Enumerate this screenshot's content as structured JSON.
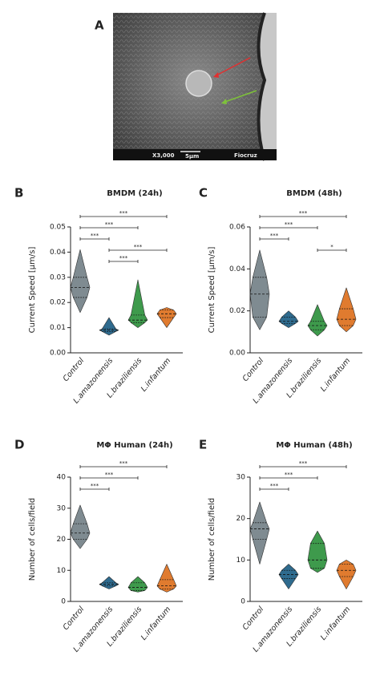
{
  "panel_a": {
    "label": "A",
    "scale": "X3,000",
    "bar": "5μm",
    "credit": "Fiocruz"
  },
  "chart_data": [
    {
      "type": "violin",
      "panel": "B",
      "title": "BMDM (24h)",
      "y_label": "Current Speed [μm/s]",
      "categories": [
        "Control",
        "L.amazonensis",
        "L.braziliensis",
        "L.infantum"
      ],
      "colors": [
        "#7f8b91",
        "#2f6b8e",
        "#3e9a4c",
        "#e07b2f"
      ],
      "min": [
        0.016,
        0.007,
        0.01,
        0.01
      ],
      "q1": [
        0.022,
        0.0085,
        0.012,
        0.014
      ],
      "median": [
        0.026,
        0.009,
        0.013,
        0.0155
      ],
      "q3": [
        0.03,
        0.0095,
        0.015,
        0.017
      ],
      "max": [
        0.041,
        0.014,
        0.029,
        0.018
      ],
      "ylim": [
        0,
        0.05
      ],
      "yticks": [
        {
          "value": 0,
          "label": "0.00"
        },
        {
          "value": 0.01,
          "label": "0.01"
        },
        {
          "value": 0.02,
          "label": "0.02"
        },
        {
          "value": 0.03,
          "label": "0.03"
        },
        {
          "value": 0.04,
          "label": "0.04"
        },
        {
          "value": 0.05,
          "label": "0.05"
        }
      ],
      "comparisons": [
        {
          "between": [
            "Control",
            "L.infantum"
          ],
          "label": "***"
        },
        {
          "between": [
            "Control",
            "L.braziliensis"
          ],
          "label": "***"
        },
        {
          "between": [
            "Control",
            "L.amazonensis"
          ],
          "label": "***"
        },
        {
          "between": [
            "L.amazonensis",
            "L.infantum"
          ],
          "label": "***"
        },
        {
          "between": [
            "L.amazonensis",
            "L.braziliensis"
          ],
          "label": "***"
        }
      ]
    },
    {
      "type": "violin",
      "panel": "C",
      "title": "BMDM  (48h)",
      "y_label": "Current Speed [μm/s]",
      "categories": [
        "Control",
        "L.amazonensis",
        "L.braziliensis",
        "L.infantum"
      ],
      "colors": [
        "#7f8b91",
        "#2f6b8e",
        "#3e9a4c",
        "#e07b2f"
      ],
      "min": [
        0.011,
        0.012,
        0.008,
        0.01
      ],
      "q1": [
        0.017,
        0.014,
        0.011,
        0.013
      ],
      "median": [
        0.028,
        0.015,
        0.013,
        0.016
      ],
      "q3": [
        0.036,
        0.017,
        0.015,
        0.021
      ],
      "max": [
        0.049,
        0.02,
        0.023,
        0.031
      ],
      "ylim": [
        0,
        0.06
      ],
      "yticks": [
        {
          "value": 0,
          "label": "0.00"
        },
        {
          "value": 0.02,
          "label": "0.02"
        },
        {
          "value": 0.04,
          "label": "0.04"
        },
        {
          "value": 0.06,
          "label": "0.06"
        }
      ],
      "comparisons": [
        {
          "between": [
            "Control",
            "L.infantum"
          ],
          "label": "***"
        },
        {
          "between": [
            "Control",
            "L.braziliensis"
          ],
          "label": "***"
        },
        {
          "between": [
            "Control",
            "L.amazonensis"
          ],
          "label": "***"
        },
        {
          "between": [
            "L.braziliensis",
            "L.infantum"
          ],
          "label": "*"
        }
      ]
    },
    {
      "type": "violin",
      "panel": "D",
      "title": "MΦ Human (24h)",
      "y_label": "Number of cells/field",
      "categories": [
        "Control",
        "L.amazonensis",
        "L.braziliensis",
        "L.infantum"
      ],
      "colors": [
        "#7f8b91",
        "#2f6b8e",
        "#3e9a4c",
        "#e07b2f"
      ],
      "min": [
        17,
        4,
        3,
        3
      ],
      "q1": [
        20,
        5,
        3.5,
        4
      ],
      "median": [
        22,
        5.5,
        4.5,
        5
      ],
      "q3": [
        25,
        6,
        6,
        7
      ],
      "max": [
        31,
        8,
        8,
        12
      ],
      "ylim": [
        0,
        40
      ],
      "yticks": [
        0,
        10,
        20,
        30,
        40
      ],
      "comparisons": [
        {
          "between": [
            "Control",
            "L.infantum"
          ],
          "label": "***"
        },
        {
          "between": [
            "Control",
            "L.braziliensis"
          ],
          "label": "***"
        },
        {
          "between": [
            "Control",
            "L.amazonensis"
          ],
          "label": "***"
        }
      ]
    },
    {
      "type": "violin",
      "panel": "E",
      "title": "MΦ Human (48h)",
      "y_label": "Number of cells/field",
      "categories": [
        "Control",
        "L.amazonensis",
        "L.braziliensis",
        "L.infantum"
      ],
      "colors": [
        "#7f8b91",
        "#2f6b8e",
        "#3e9a4c",
        "#e07b2f"
      ],
      "min": [
        9,
        3,
        7,
        3
      ],
      "q1": [
        15,
        5.5,
        8,
        6
      ],
      "median": [
        17.5,
        6.5,
        10,
        7.5
      ],
      "q3": [
        19,
        7.5,
        14,
        9
      ],
      "max": [
        24,
        9,
        17,
        10
      ],
      "ylim": [
        0,
        30
      ],
      "yticks": [
        0,
        10,
        20,
        30
      ],
      "comparisons": [
        {
          "between": [
            "Control",
            "L.infantum"
          ],
          "label": "***"
        },
        {
          "between": [
            "Control",
            "L.braziliensis"
          ],
          "label": "***"
        },
        {
          "between": [
            "Control",
            "L.amazonensis"
          ],
          "label": "***"
        }
      ]
    }
  ]
}
